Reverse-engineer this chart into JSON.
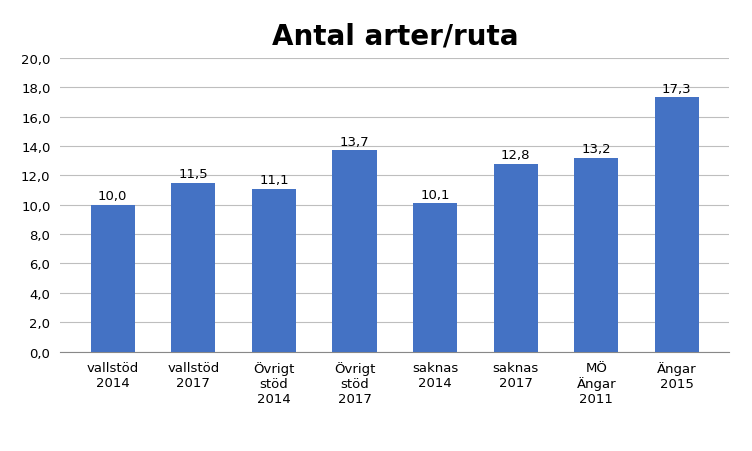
{
  "title": "Antal arter/ruta",
  "categories": [
    "vallstöd\n2014",
    "vallstöd\n2017",
    "Övrigt\nstöd\n2014",
    "Övrigt\nstöd\n2017",
    "saknas\n2014",
    "saknas\n2017",
    "MÖ\nÄngar\n2011",
    "Ängar\n2015"
  ],
  "values": [
    10.0,
    11.5,
    11.1,
    13.7,
    10.1,
    12.8,
    13.2,
    17.3
  ],
  "bar_color": "#4472C4",
  "ylim": [
    0,
    20
  ],
  "yticks": [
    0,
    2,
    4,
    6,
    8,
    10,
    12,
    14,
    16,
    18,
    20
  ],
  "ytick_labels": [
    "0,0",
    "2,0",
    "4,0",
    "6,0",
    "8,0",
    "10,0",
    "12,0",
    "14,0",
    "16,0",
    "18,0",
    "20,0"
  ],
  "value_labels": [
    "10,0",
    "11,5",
    "11,1",
    "13,7",
    "10,1",
    "12,8",
    "13,2",
    "17,3"
  ],
  "background_color": "#ffffff",
  "title_fontsize": 20,
  "label_fontsize": 9.5,
  "tick_fontsize": 9.5,
  "value_fontsize": 9.5,
  "grid_color": "#BEBEBE",
  "bar_width": 0.55
}
